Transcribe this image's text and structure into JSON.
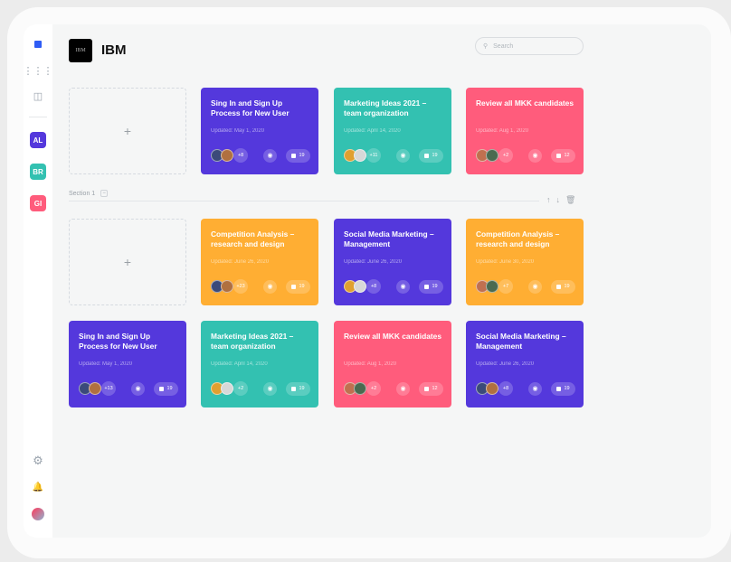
{
  "sidebar": {
    "workspaces": [
      {
        "label": "AL",
        "color": "#5438dc"
      },
      {
        "label": "BR",
        "color": "#33c1b1"
      },
      {
        "label": "GI",
        "color": "#ff5c7c"
      }
    ]
  },
  "header": {
    "logo_text": "IBM",
    "title": "IBM",
    "search_placeholder": "Search"
  },
  "section": {
    "label": "Section 1",
    "toggle": "−"
  },
  "add_label": "+",
  "colors": {
    "purple": "#5438dc",
    "teal": "#33c1b1",
    "pink": "#ff5c7c",
    "orange": "#ffae33"
  },
  "cards": [
    {
      "title": "Sing In and Sign Up Process for New User",
      "updated": "Updated: May 1, 2020",
      "more": "+8",
      "comments": "19",
      "color": "#5438dc"
    },
    {
      "title": "Marketing Ideas 2021 – team organization",
      "updated": "Updated: April 14, 2020",
      "more": "+11",
      "comments": "19",
      "color": "#33c1b1"
    },
    {
      "title": "Review all MKK candidates",
      "updated": "Updated: Aug 1, 2020",
      "more": "+2",
      "comments": "12",
      "color": "#ff5c7c"
    },
    {
      "title": "Competition Analysis – research and design",
      "updated": "Updated: June 26, 2020",
      "more": "+23",
      "comments": "19",
      "color": "#ffae33"
    },
    {
      "title": "Social Media Marketing – Management",
      "updated": "Updated: June 26, 2020",
      "more": "+8",
      "comments": "19",
      "color": "#5438dc"
    },
    {
      "title": "Competition Analysis – research and design",
      "updated": "Updated: June 30, 2020",
      "more": "+7",
      "comments": "19",
      "color": "#ffae33"
    },
    {
      "title": "Sing In and Sign Up Process for New User",
      "updated": "Updated: May 1, 2020",
      "more": "+13",
      "comments": "19",
      "color": "#5438dc"
    },
    {
      "title": "Marketing Ideas 2021 – team organization",
      "updated": "Updated: April 14, 2020",
      "more": "+2",
      "comments": "19",
      "color": "#33c1b1"
    },
    {
      "title": "Review all MKK candidates",
      "updated": "Updated: Aug 1, 2020",
      "more": "+2",
      "comments": "12",
      "color": "#ff5c7c"
    },
    {
      "title": "Social Media Marketing – Management",
      "updated": "Updated: June 26, 2020",
      "more": "+8",
      "comments": "19",
      "color": "#5438dc"
    }
  ]
}
